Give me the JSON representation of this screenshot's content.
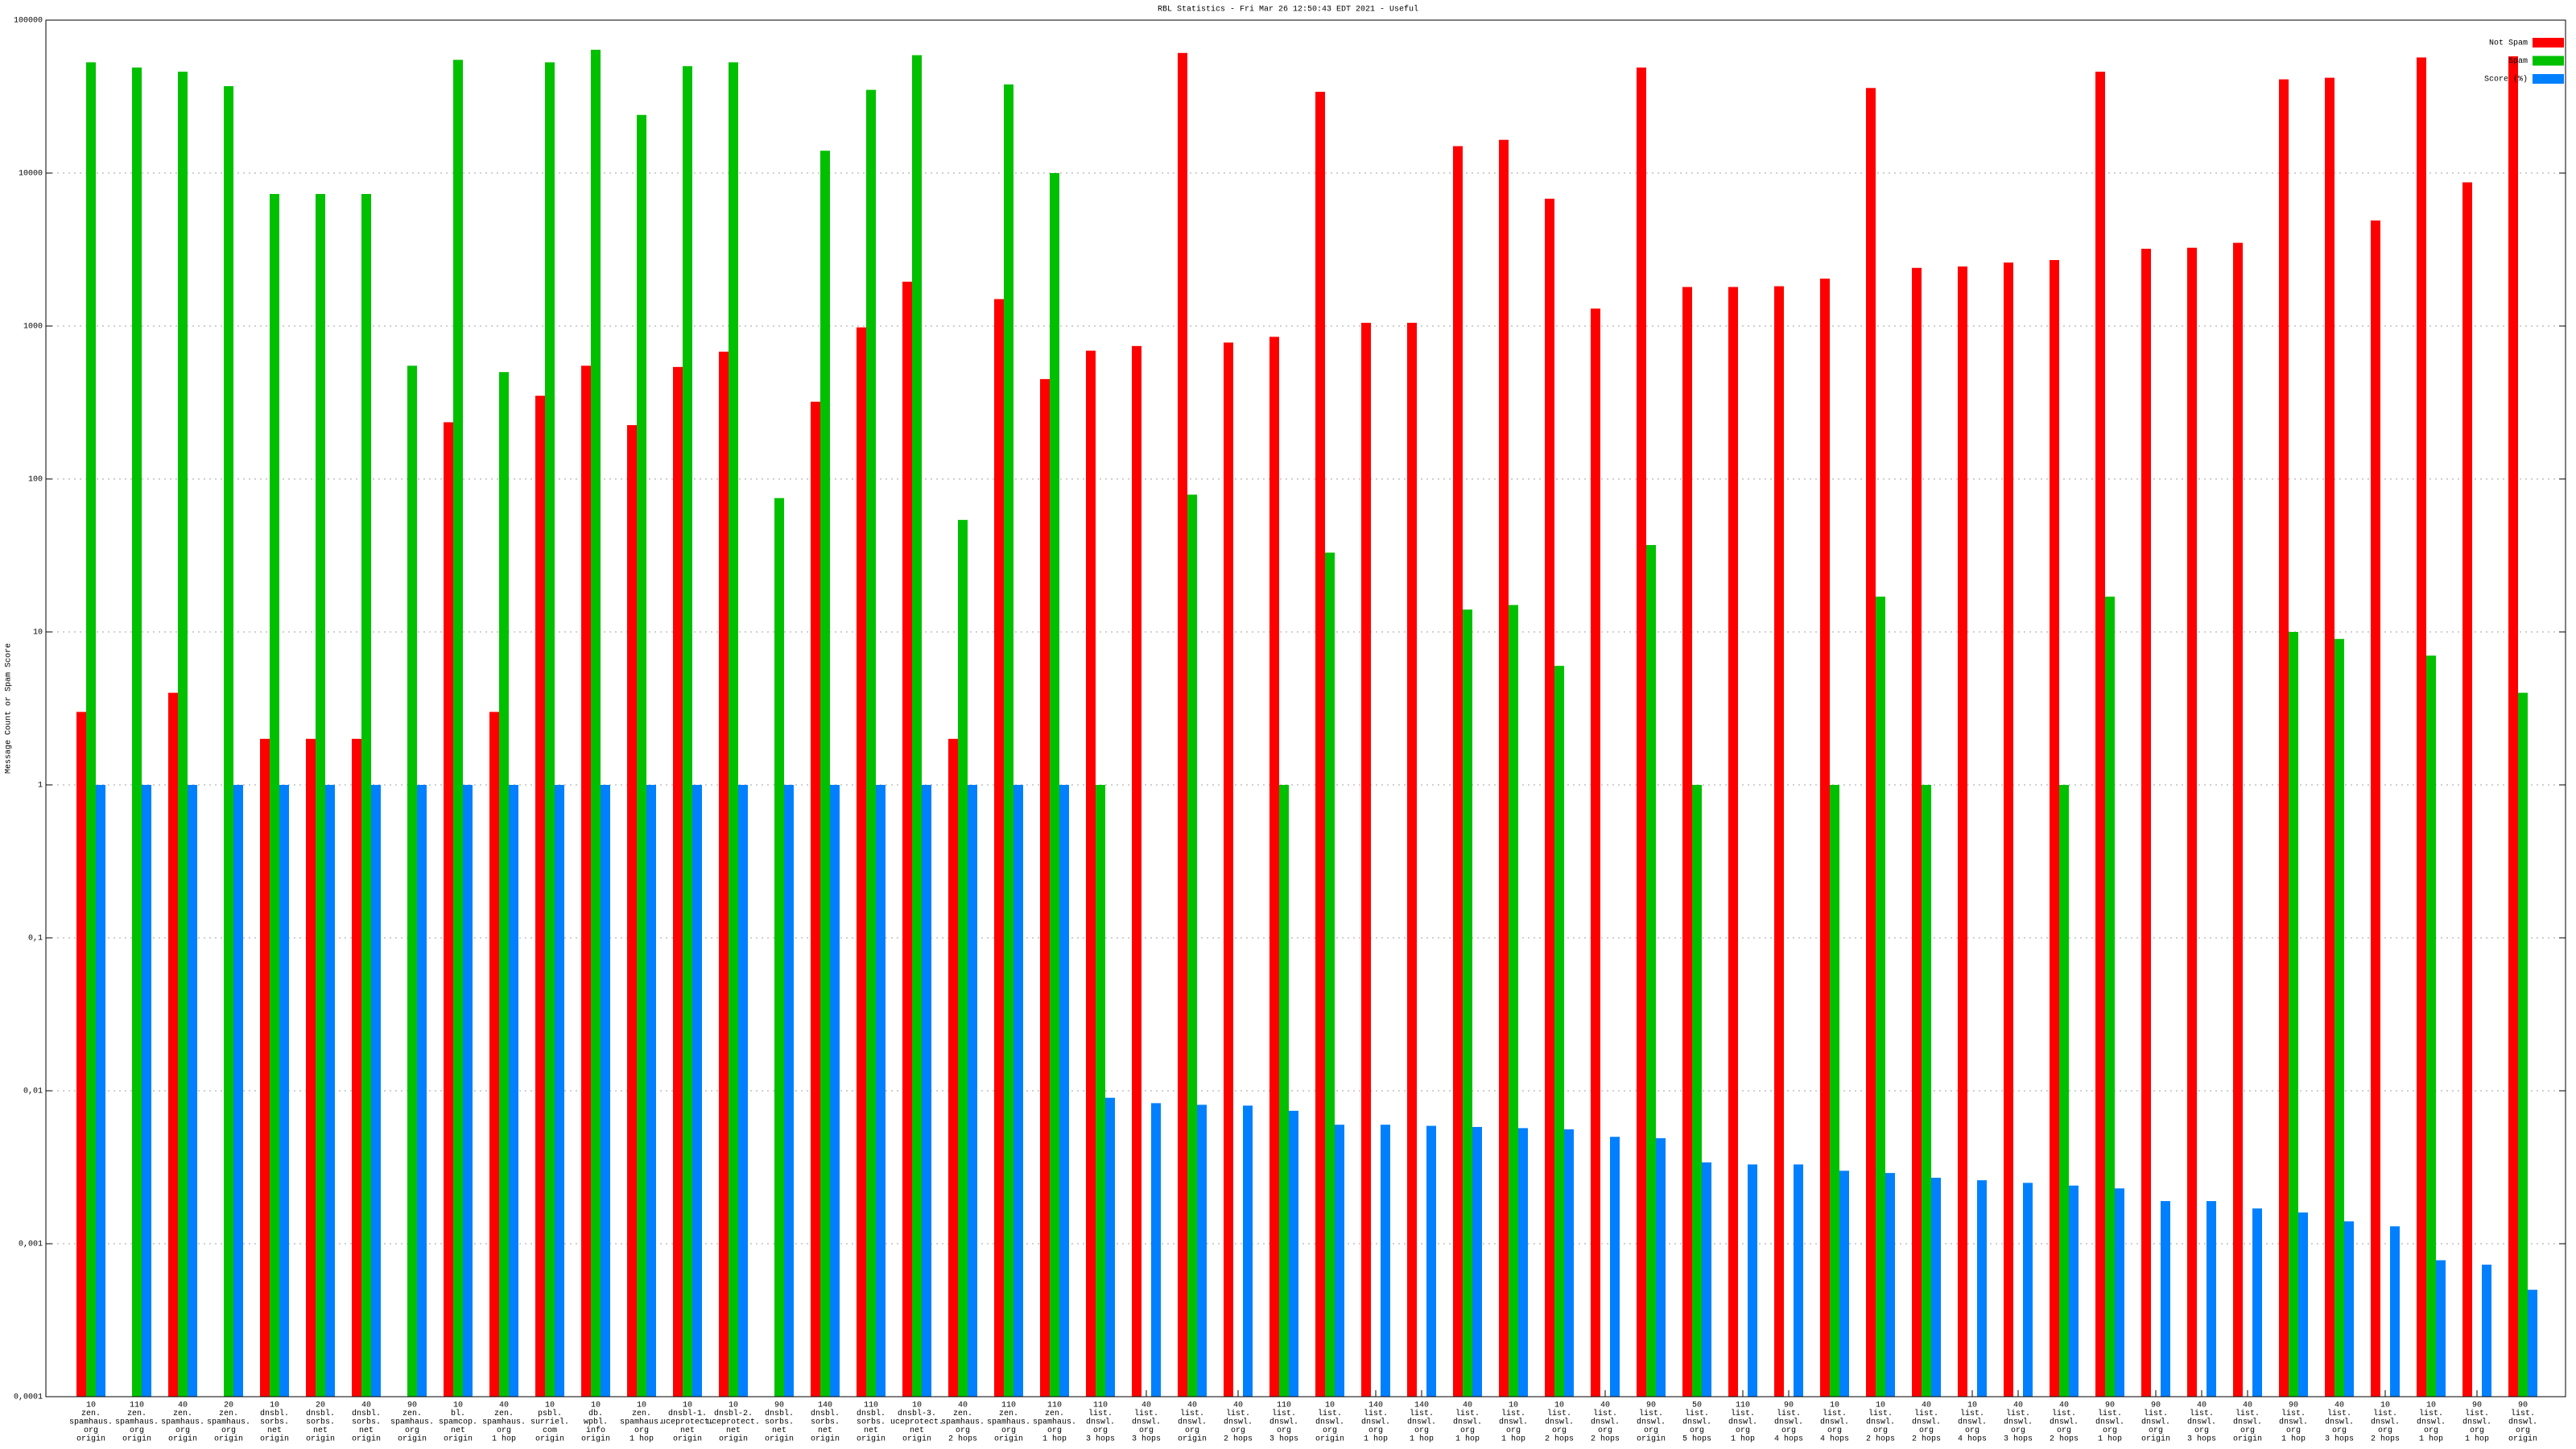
{
  "chart_data": {
    "type": "bar",
    "title": "RBL Statistics - Fri Mar 26 12:50:43 EDT 2021 - Useful",
    "y_label": "Message Count or Spam Score",
    "log_scale": true,
    "grid": true,
    "legend_position": "top-right",
    "ylim": [
      0.0001,
      100000
    ],
    "yticks": [
      {
        "value": 0.0001,
        "label": "0,0001"
      },
      {
        "value": 0.001,
        "label": "0,001"
      },
      {
        "value": 0.01,
        "label": "0,01"
      },
      {
        "value": 0.1,
        "label": "0,1"
      },
      1,
      10,
      100,
      1000,
      10000,
      100000
    ],
    "categories": [
      [
        "10",
        "zen.",
        "spamhaus.",
        "org",
        "origin"
      ],
      [
        "110",
        "zen.",
        "spamhaus.",
        "org",
        "origin"
      ],
      [
        "40",
        "zen.",
        "spamhaus.",
        "org",
        "origin"
      ],
      [
        "20",
        "zen.",
        "spamhaus.",
        "org",
        "origin"
      ],
      [
        "10",
        "dnsbl.",
        "sorbs.",
        "net",
        "origin"
      ],
      [
        "20",
        "dnsbl.",
        "sorbs.",
        "net",
        "origin"
      ],
      [
        "40",
        "dnsbl.",
        "sorbs.",
        "net",
        "origin"
      ],
      [
        "90",
        "zen.",
        "spamhaus.",
        "org",
        "origin"
      ],
      [
        "10",
        "bl.",
        "spamcop.",
        "net",
        "origin"
      ],
      [
        "40",
        "zen.",
        "spamhaus.",
        "org",
        "1 hop"
      ],
      [
        "10",
        "psbl.",
        "surriel.",
        "com",
        "origin"
      ],
      [
        "10",
        "db.",
        "wpbl.",
        "info",
        "origin"
      ],
      [
        "10",
        "zen.",
        "spamhaus.",
        "org",
        "1 hop"
      ],
      [
        "10",
        "dnsbl-1.",
        "uceprotect.",
        "net",
        "origin"
      ],
      [
        "10",
        "dnsbl-2.",
        "uceprotect.",
        "net",
        "origin"
      ],
      [
        "90",
        "dnsbl.",
        "sorbs.",
        "net",
        "origin"
      ],
      [
        "140",
        "dnsbl.",
        "sorbs.",
        "net",
        "origin"
      ],
      [
        "110",
        "dnsbl.",
        "sorbs.",
        "net",
        "origin"
      ],
      [
        "10",
        "dnsbl-3.",
        "uceprotect.",
        "net",
        "origin"
      ],
      [
        "40",
        "zen.",
        "spamhaus.",
        "org",
        "2 hops"
      ],
      [
        "110",
        "zen.",
        "spamhaus.",
        "org",
        "origin"
      ],
      [
        "110",
        "zen.",
        "spamhaus.",
        "org",
        "1 hop"
      ],
      [
        "110",
        "list.",
        "dnswl.",
        "org",
        "3 hops"
      ],
      [
        "40",
        "list.",
        "dnswl.",
        "org",
        "3 hops"
      ],
      [
        "40",
        "list.",
        "dnswl.",
        "org",
        "origin"
      ],
      [
        "40",
        "list.",
        "dnswl.",
        "org",
        "2 hops"
      ],
      [
        "110",
        "list.",
        "dnswl.",
        "org",
        "3 hops"
      ],
      [
        "10",
        "list.",
        "dnswl.",
        "org",
        "origin"
      ],
      [
        "140",
        "list.",
        "dnswl.",
        "org",
        "1 hop"
      ],
      [
        "140",
        "list.",
        "dnswl.",
        "org",
        "1 hop"
      ],
      [
        "40",
        "list.",
        "dnswl.",
        "org",
        "1 hop"
      ],
      [
        "10",
        "list.",
        "dnswl.",
        "org",
        "1 hop"
      ],
      [
        "10",
        "list.",
        "dnswl.",
        "org",
        "2 hops"
      ],
      [
        "40",
        "list.",
        "dnswl.",
        "org",
        "2 hops"
      ],
      [
        "90",
        "list.",
        "dnswl.",
        "org",
        "origin"
      ],
      [
        "50",
        "list.",
        "dnswl.",
        "org",
        "5 hops"
      ],
      [
        "110",
        "list.",
        "dnswl.",
        "org",
        "1 hop"
      ],
      [
        "90",
        "list.",
        "dnswl.",
        "org",
        "4 hops"
      ],
      [
        "10",
        "list.",
        "dnswl.",
        "org",
        "4 hops"
      ],
      [
        "10",
        "list.",
        "dnswl.",
        "org",
        "2 hops"
      ],
      [
        "40",
        "list.",
        "dnswl.",
        "org",
        "2 hops"
      ],
      [
        "10",
        "list.",
        "dnswl.",
        "org",
        "4 hops"
      ],
      [
        "40",
        "list.",
        "dnswl.",
        "org",
        "3 hops"
      ],
      [
        "40",
        "list.",
        "dnswl.",
        "org",
        "2 hops"
      ],
      [
        "90",
        "list.",
        "dnswl.",
        "org",
        "1 hop"
      ],
      [
        "90",
        "list.",
        "dnswl.",
        "org",
        "origin"
      ],
      [
        "40",
        "list.",
        "dnswl.",
        "org",
        "3 hops"
      ],
      [
        "40",
        "list.",
        "dnswl.",
        "org",
        "origin"
      ],
      [
        "90",
        "list.",
        "dnswl.",
        "org",
        "1 hop"
      ],
      [
        "40",
        "list.",
        "dnswl.",
        "org",
        "3 hops"
      ],
      [
        "10",
        "list.",
        "dnswl.",
        "org",
        "2 hops"
      ],
      [
        "10",
        "list.",
        "dnswl.",
        "org",
        "1 hop"
      ],
      [
        "90",
        "list.",
        "dnswl.",
        "org",
        "1 hop"
      ],
      [
        "90",
        "list.",
        "dnswl.",
        "org",
        "origin"
      ]
    ],
    "series": [
      {
        "name": "Not Spam",
        "color": "#ff0000",
        "values": [
          3,
          null,
          4,
          null,
          2,
          2,
          2,
          null,
          235,
          3,
          350,
          550,
          225,
          540,
          680,
          null,
          320,
          980,
          1950,
          2,
          1500,
          450,
          690,
          740,
          61000,
          780,
          850,
          34000,
          1050,
          1050,
          15000,
          16500,
          6800,
          1300,
          49000,
          1800,
          1800,
          1820,
          2040,
          36000,
          2400,
          2450,
          2600,
          2700,
          46000,
          3200,
          3250,
          3500,
          41000,
          42000,
          4900,
          57000,
          8700,
          58000
        ]
      },
      {
        "name": "Spam",
        "color": "#00c000",
        "values": [
          53000,
          49000,
          46000,
          37000,
          7300,
          7300,
          7300,
          550,
          55000,
          500,
          53000,
          64000,
          24000,
          50000,
          53000,
          75,
          14000,
          35000,
          59000,
          54,
          38000,
          10000,
          1,
          null,
          79,
          null,
          1,
          33,
          null,
          null,
          14,
          15,
          6,
          null,
          37,
          1,
          null,
          null,
          1,
          17,
          1,
          null,
          null,
          1,
          17,
          null,
          null,
          null,
          10,
          9,
          null,
          7,
          null,
          4
        ]
      },
      {
        "name": "Score (%)",
        "color": "#0080ff",
        "values": [
          1,
          1,
          1,
          1,
          1,
          1,
          1,
          1,
          1,
          1,
          1,
          1,
          1,
          1,
          1,
          1,
          1,
          1,
          1,
          1,
          1,
          1,
          0.009,
          0.0083,
          0.0081,
          0.008,
          0.0074,
          0.006,
          0.006,
          0.0059,
          0.0058,
          0.0057,
          0.0056,
          0.005,
          0.0049,
          0.0034,
          0.0033,
          0.0033,
          0.003,
          0.0029,
          0.0027,
          0.0026,
          0.0025,
          0.0024,
          0.0023,
          0.0019,
          0.0019,
          0.0017,
          0.0016,
          0.0014,
          0.0013,
          0.00078,
          0.00073,
          0.0005
        ]
      }
    ]
  }
}
